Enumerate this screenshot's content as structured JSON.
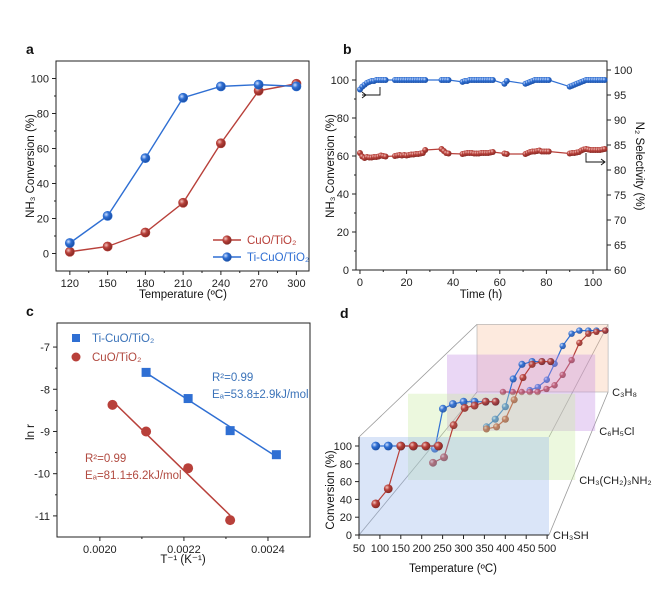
{
  "panel_labels": {
    "a": "a",
    "b": "b",
    "c": "c",
    "d": "d"
  },
  "colors": {
    "red": "#b8403a",
    "blue": "#2f6fd3",
    "blue_text": "#3b73b9",
    "red_text": "#b14a40"
  },
  "chart_data": [
    {
      "type": "line",
      "xlabel": "Temperature (ºC)",
      "ylabel": "NH₃ Conversion (%)",
      "xlim": [
        109,
        310
      ],
      "ylim": [
        -10,
        110
      ],
      "xticks": [
        120,
        150,
        180,
        210,
        240,
        270,
        300
      ],
      "yticks": [
        0,
        20,
        40,
        60,
        80,
        100
      ],
      "legend": "bottom-right",
      "x": [
        120,
        150,
        180,
        210,
        240,
        270,
        300
      ],
      "series": [
        {
          "name": "CuO/TiO₂",
          "color": "#b8403a",
          "values": [
            1,
            4,
            12,
            29,
            63,
            93,
            97
          ]
        },
        {
          "name": "Ti-CuO/TiO₂",
          "color": "#2f6fd3",
          "values": [
            6,
            21.5,
            54.5,
            89,
            95.5,
            96.5,
            95.5
          ]
        }
      ]
    },
    {
      "type": "scatter",
      "xlabel": "Time (h)",
      "ylabel": "NH₃ Conversion (%)",
      "y2label": "N₂ Selectivity (%)",
      "xlim": [
        -1.7,
        106
      ],
      "ylim": [
        0,
        110
      ],
      "y2lim": [
        60,
        101.8
      ],
      "xticks": [
        0,
        20,
        40,
        60,
        80,
        100
      ],
      "yticks": [
        0,
        20,
        40,
        60,
        80,
        100
      ],
      "y2ticks": [
        60,
        65,
        70,
        75,
        80,
        85,
        90,
        95,
        100
      ],
      "x": [
        0,
        1,
        2,
        3,
        4,
        5,
        6,
        7,
        8,
        9,
        10,
        11,
        15,
        16,
        17,
        18,
        19,
        20,
        21,
        22,
        23,
        24,
        25,
        26,
        27,
        28,
        35,
        36,
        37,
        38,
        44,
        45,
        46,
        47,
        48,
        49,
        50,
        51,
        52,
        53,
        54,
        55,
        56,
        57,
        62,
        63,
        71,
        72,
        73,
        74,
        75,
        76,
        77,
        78,
        79,
        80,
        81,
        90,
        91,
        92,
        93,
        94,
        95,
        96,
        97,
        98,
        99,
        100,
        101,
        102,
        103,
        104,
        105
      ],
      "series": [
        {
          "axis": "left",
          "color": "#2f6fd3",
          "values": [
            95,
            96.5,
            97.5,
            98.5,
            99,
            99.5,
            99.5,
            100,
            100,
            100,
            100,
            100,
            100,
            100,
            100,
            100,
            100,
            100,
            100,
            100,
            100,
            100,
            100,
            100,
            100,
            100,
            100,
            100,
            100,
            100,
            99,
            99.5,
            99.5,
            100,
            100,
            100,
            100,
            100,
            100,
            100,
            100,
            100,
            100,
            100,
            98,
            99.5,
            98,
            98.5,
            99,
            99.5,
            100,
            100,
            100,
            100,
            100,
            100,
            100,
            96.5,
            97,
            97.5,
            98,
            98.5,
            99,
            99.5,
            100,
            100,
            100,
            100,
            100,
            100,
            100,
            100,
            100
          ]
        },
        {
          "axis": "right",
          "color": "#b8403a",
          "values": [
            83.4,
            82.7,
            82.4,
            82.6,
            82.5,
            82.5,
            82.6,
            82.6,
            82.7,
            82.9,
            82.8,
            82.7,
            82.8,
            82.9,
            83,
            82.9,
            83,
            82.9,
            83,
            83.1,
            83.1,
            83.2,
            83.2,
            83.3,
            83.4,
            84,
            84.2,
            83.8,
            83.4,
            83.3,
            83.2,
            83.3,
            83.4,
            83.4,
            83.4,
            83.3,
            83.3,
            83.3,
            83.4,
            83.4,
            83.4,
            83.4,
            83.5,
            83.6,
            83.3,
            83.2,
            83.2,
            83.4,
            83.6,
            83.7,
            83.7,
            83.8,
            83.9,
            83.7,
            83.7,
            83.7,
            83.7,
            83.3,
            83.4,
            83.4,
            83.5,
            83.6,
            83.9,
            84.1,
            84.2,
            84.1,
            84,
            84,
            84,
            84,
            84,
            84.1,
            84.2
          ]
        }
      ]
    },
    {
      "type": "scatter",
      "xlabel": "T⁻¹ (K⁻¹)",
      "ylabel": "ln r",
      "xlim": [
        0.001898,
        0.0025
      ],
      "ylim": [
        -11.5,
        -6.43
      ],
      "xticks": [
        "0.0020",
        "0.0022",
        "0.0024"
      ],
      "yticks": [
        -11,
        -10,
        -9,
        -8,
        -7
      ],
      "legend": "top-left",
      "series": [
        {
          "name": "Ti-CuO/TiO₂",
          "color": "#2f6fd3",
          "marker": "square",
          "x": [
            0.00211,
            0.00221,
            0.00231,
            0.00242
          ],
          "y": [
            -7.6,
            -8.22,
            -8.98,
            -9.55
          ],
          "annotation": [
            "R²=0.99",
            "Eₐ=53.8±2.9kJ/mol"
          ]
        },
        {
          "name": "CuO/TiO₂",
          "color": "#b8403a",
          "marker": "circle",
          "x": [
            0.00203,
            0.00211,
            0.00221,
            0.00231
          ],
          "y": [
            -8.37,
            -9.0,
            -9.87,
            -11.1
          ],
          "annotation": [
            "R²=0.99",
            "Eₐ=81.1±6.2kJ/mol"
          ]
        }
      ]
    },
    {
      "type": "line",
      "xlabel": "Temperature (ºC)",
      "ylabel": "Conversion (%)",
      "xticks": [
        50,
        100,
        150,
        200,
        250,
        300,
        350,
        400,
        450,
        500
      ],
      "yticks": [
        0,
        20,
        40,
        60,
        80,
        100
      ],
      "layers": [
        {
          "name": "CH₃SH",
          "blue": {
            "x": [
              90,
              120,
              150,
              180,
              210,
              240
            ],
            "y": [
              100,
              100,
              100,
              100,
              100,
              100
            ]
          },
          "red": {
            "x": [
              90,
              120,
              150,
              180,
              210,
              240
            ],
            "y": [
              35,
              52,
              100,
              100,
              100,
              100
            ]
          }
        },
        {
          "name": "CH₃(CH₂)₃NH₂",
          "blue": {
            "x": [
              123,
              145,
              172,
              201,
              231,
              261,
              288
            ],
            "y": [
              40,
              91,
              97,
              100,
              100,
              100,
              100
            ]
          },
          "red": {
            "x": [
              118,
              148,
              174,
              204,
              231,
              261,
              288
            ],
            "y": [
              22,
              29,
              70,
              92,
              95,
              100,
              100
            ]
          }
        },
        {
          "name": "C₆H₅Cl",
          "blue": {
            "x": [
              171,
              198,
              229,
              253,
              280,
              311,
              341,
              368
            ],
            "y": [
              6,
              17,
              35,
              75,
              96,
              100,
              100,
              100
            ]
          },
          "red": {
            "x": [
              171,
              202,
              229,
              256,
              283,
              311,
              341,
              368
            ],
            "y": [
              3,
              6,
              17,
              45,
              77,
              96,
              100,
              100
            ]
          }
        },
        {
          "name": "C₃H₈",
          "blue": {
            "x": [
              233,
              261,
              292,
              319,
              347,
              378,
              405,
              436,
              464,
              495
            ],
            "y": [
              3,
              8,
              20,
              46,
              75,
              95,
              100,
              100,
              100,
              100
            ]
          },
          "red": {
            "x": [
              140,
              174,
              205,
              233,
              260,
              291,
              319,
              347,
              378,
              405,
              436,
              464,
              495
            ],
            "y": [
              0,
              0,
              0,
              0,
              0,
              5,
              11,
              28,
              52,
              80,
              95,
              98,
              100
            ]
          }
        }
      ]
    }
  ]
}
